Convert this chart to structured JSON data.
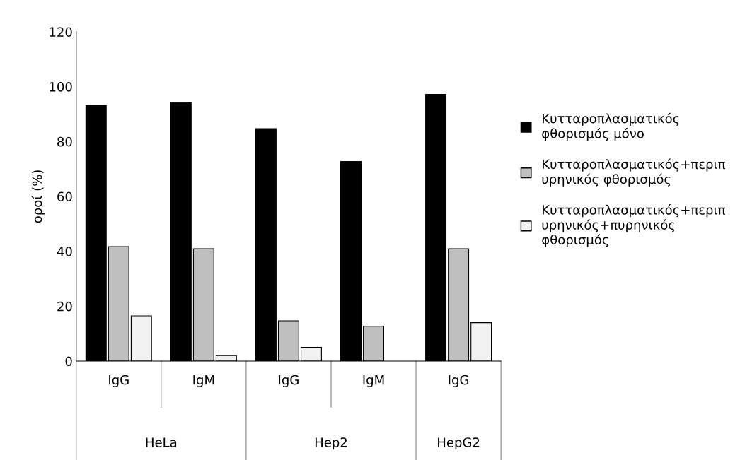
{
  "chart_data": {
    "type": "bar",
    "ylabel": "οροί (%)",
    "categories": [
      "IgG",
      "IgM",
      "IgG",
      "IgM",
      "IgG"
    ],
    "series": [
      {
        "name": "Κυτταροπλασματικός\nφθορισμός μόνο",
        "color": "#000000",
        "values": [
          93.2,
          94.2,
          84.7,
          72.7,
          97.2
        ]
      },
      {
        "name": "Κυτταροπλασματικός+περιπ\nυρηνικός φθορισμός",
        "color": "#bfbfbf",
        "values": [
          41.7,
          40.9,
          14.7,
          12.7,
          40.9
        ]
      },
      {
        "name": "Κυτταροπλασματικός+περιπ\nυρηνικός+πυρηνικός\nφθορισμός",
        "color": "#f2f2f2",
        "values": [
          16.5,
          2,
          5,
          null,
          14
        ]
      }
    ],
    "annotations": [
      "HeLa",
      "Hep2",
      "HepG2"
    ],
    "ylim": [
      0,
      120
    ],
    "yticks": [
      0,
      20,
      40,
      60,
      80,
      100,
      120
    ],
    "grid": false,
    "legend": "right"
  }
}
